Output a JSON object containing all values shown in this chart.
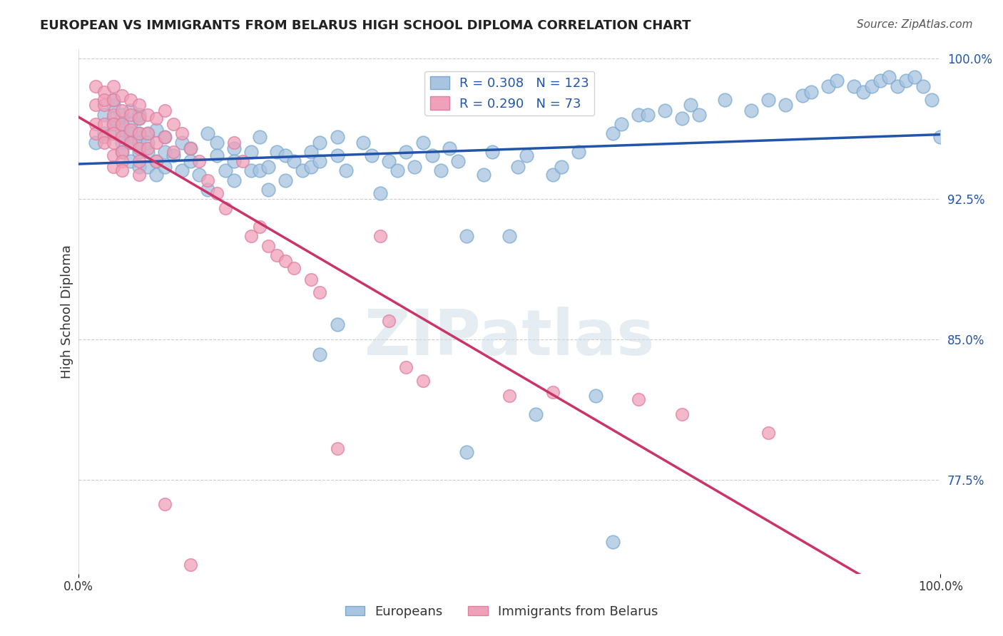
{
  "title": "EUROPEAN VS IMMIGRANTS FROM BELARUS HIGH SCHOOL DIPLOMA CORRELATION CHART",
  "source": "Source: ZipAtlas.com",
  "xlabel": "",
  "ylabel": "High School Diploma",
  "xmin": 0.0,
  "xmax": 1.0,
  "ymin": 0.725,
  "ymax": 1.005,
  "yticks": [
    0.775,
    0.85,
    0.925,
    1.0
  ],
  "ytick_labels": [
    "77.5%",
    "85.0%",
    "92.5%",
    "100.0%"
  ],
  "xtick_labels": [
    "0.0%",
    "100.0%"
  ],
  "xticks": [
    0.0,
    1.0
  ],
  "blue_R": 0.308,
  "blue_N": 123,
  "pink_R": 0.29,
  "pink_N": 73,
  "blue_color": "#a8c4e0",
  "blue_line_color": "#2255aa",
  "pink_color": "#f0a0b8",
  "pink_line_color": "#cc3366",
  "legend_label_blue": "Europeans",
  "legend_label_pink": "Immigrants from Belarus",
  "watermark": "ZIPatlas",
  "blue_scatter_x": [
    0.02,
    0.03,
    0.03,
    0.04,
    0.04,
    0.04,
    0.04,
    0.04,
    0.05,
    0.05,
    0.05,
    0.05,
    0.05,
    0.05,
    0.06,
    0.06,
    0.06,
    0.06,
    0.06,
    0.06,
    0.07,
    0.07,
    0.07,
    0.07,
    0.07,
    0.07,
    0.07,
    0.08,
    0.08,
    0.08,
    0.08,
    0.09,
    0.09,
    0.09,
    0.1,
    0.1,
    0.1,
    0.11,
    0.12,
    0.12,
    0.13,
    0.13,
    0.14,
    0.15,
    0.15,
    0.16,
    0.16,
    0.17,
    0.18,
    0.18,
    0.18,
    0.2,
    0.2,
    0.21,
    0.21,
    0.22,
    0.22,
    0.23,
    0.24,
    0.24,
    0.25,
    0.26,
    0.27,
    0.27,
    0.28,
    0.28,
    0.3,
    0.3,
    0.31,
    0.33,
    0.34,
    0.35,
    0.36,
    0.37,
    0.38,
    0.39,
    0.4,
    0.41,
    0.42,
    0.43,
    0.44,
    0.45,
    0.47,
    0.48,
    0.5,
    0.51,
    0.52,
    0.53,
    0.55,
    0.56,
    0.58,
    0.6,
    0.62,
    0.63,
    0.65,
    0.66,
    0.68,
    0.7,
    0.71,
    0.72,
    0.75,
    0.78,
    0.8,
    0.82,
    0.84,
    0.85,
    0.87,
    0.88,
    0.9,
    0.91,
    0.92,
    0.93,
    0.94,
    0.95,
    0.96,
    0.97,
    0.98,
    0.99,
    1.0,
    0.28,
    0.3,
    0.45,
    0.62
  ],
  "blue_scatter_y": [
    0.955,
    0.97,
    0.96,
    0.975,
    0.965,
    0.96,
    0.968,
    0.978,
    0.965,
    0.96,
    0.955,
    0.97,
    0.95,
    0.962,
    0.958,
    0.965,
    0.945,
    0.96,
    0.972,
    0.955,
    0.968,
    0.958,
    0.95,
    0.942,
    0.96,
    0.955,
    0.97,
    0.96,
    0.95,
    0.942,
    0.955,
    0.962,
    0.945,
    0.938,
    0.958,
    0.95,
    0.942,
    0.948,
    0.955,
    0.94,
    0.952,
    0.945,
    0.938,
    0.96,
    0.93,
    0.955,
    0.948,
    0.94,
    0.952,
    0.945,
    0.935,
    0.95,
    0.94,
    0.958,
    0.94,
    0.942,
    0.93,
    0.95,
    0.948,
    0.935,
    0.945,
    0.94,
    0.95,
    0.942,
    0.955,
    0.945,
    0.958,
    0.948,
    0.94,
    0.955,
    0.948,
    0.928,
    0.945,
    0.94,
    0.95,
    0.942,
    0.955,
    0.948,
    0.94,
    0.952,
    0.945,
    0.905,
    0.938,
    0.95,
    0.905,
    0.942,
    0.948,
    0.81,
    0.938,
    0.942,
    0.95,
    0.82,
    0.96,
    0.965,
    0.97,
    0.97,
    0.972,
    0.968,
    0.975,
    0.97,
    0.978,
    0.972,
    0.978,
    0.975,
    0.98,
    0.982,
    0.985,
    0.988,
    0.985,
    0.982,
    0.985,
    0.988,
    0.99,
    0.985,
    0.988,
    0.99,
    0.985,
    0.978,
    0.958,
    0.842,
    0.858,
    0.79,
    0.742
  ],
  "pink_scatter_x": [
    0.02,
    0.02,
    0.02,
    0.02,
    0.03,
    0.03,
    0.03,
    0.03,
    0.03,
    0.03,
    0.04,
    0.04,
    0.04,
    0.04,
    0.04,
    0.04,
    0.04,
    0.04,
    0.05,
    0.05,
    0.05,
    0.05,
    0.05,
    0.05,
    0.05,
    0.06,
    0.06,
    0.06,
    0.06,
    0.07,
    0.07,
    0.07,
    0.07,
    0.07,
    0.07,
    0.08,
    0.08,
    0.08,
    0.09,
    0.09,
    0.09,
    0.1,
    0.1,
    0.11,
    0.11,
    0.12,
    0.13,
    0.14,
    0.15,
    0.16,
    0.17,
    0.18,
    0.19,
    0.2,
    0.21,
    0.22,
    0.23,
    0.24,
    0.25,
    0.27,
    0.28,
    0.3,
    0.35,
    0.36,
    0.38,
    0.4,
    0.5,
    0.55,
    0.65,
    0.7,
    0.8,
    0.1,
    0.13
  ],
  "pink_scatter_y": [
    0.985,
    0.975,
    0.965,
    0.96,
    0.982,
    0.975,
    0.965,
    0.958,
    0.978,
    0.955,
    0.985,
    0.978,
    0.97,
    0.965,
    0.96,
    0.955,
    0.948,
    0.942,
    0.98,
    0.972,
    0.965,
    0.958,
    0.95,
    0.945,
    0.94,
    0.978,
    0.97,
    0.962,
    0.955,
    0.975,
    0.968,
    0.96,
    0.952,
    0.945,
    0.938,
    0.97,
    0.96,
    0.952,
    0.968,
    0.955,
    0.945,
    0.972,
    0.958,
    0.965,
    0.95,
    0.96,
    0.952,
    0.945,
    0.935,
    0.928,
    0.92,
    0.955,
    0.945,
    0.905,
    0.91,
    0.9,
    0.895,
    0.892,
    0.888,
    0.882,
    0.875,
    0.792,
    0.905,
    0.86,
    0.835,
    0.828,
    0.82,
    0.822,
    0.818,
    0.81,
    0.8,
    0.762,
    0.73
  ]
}
